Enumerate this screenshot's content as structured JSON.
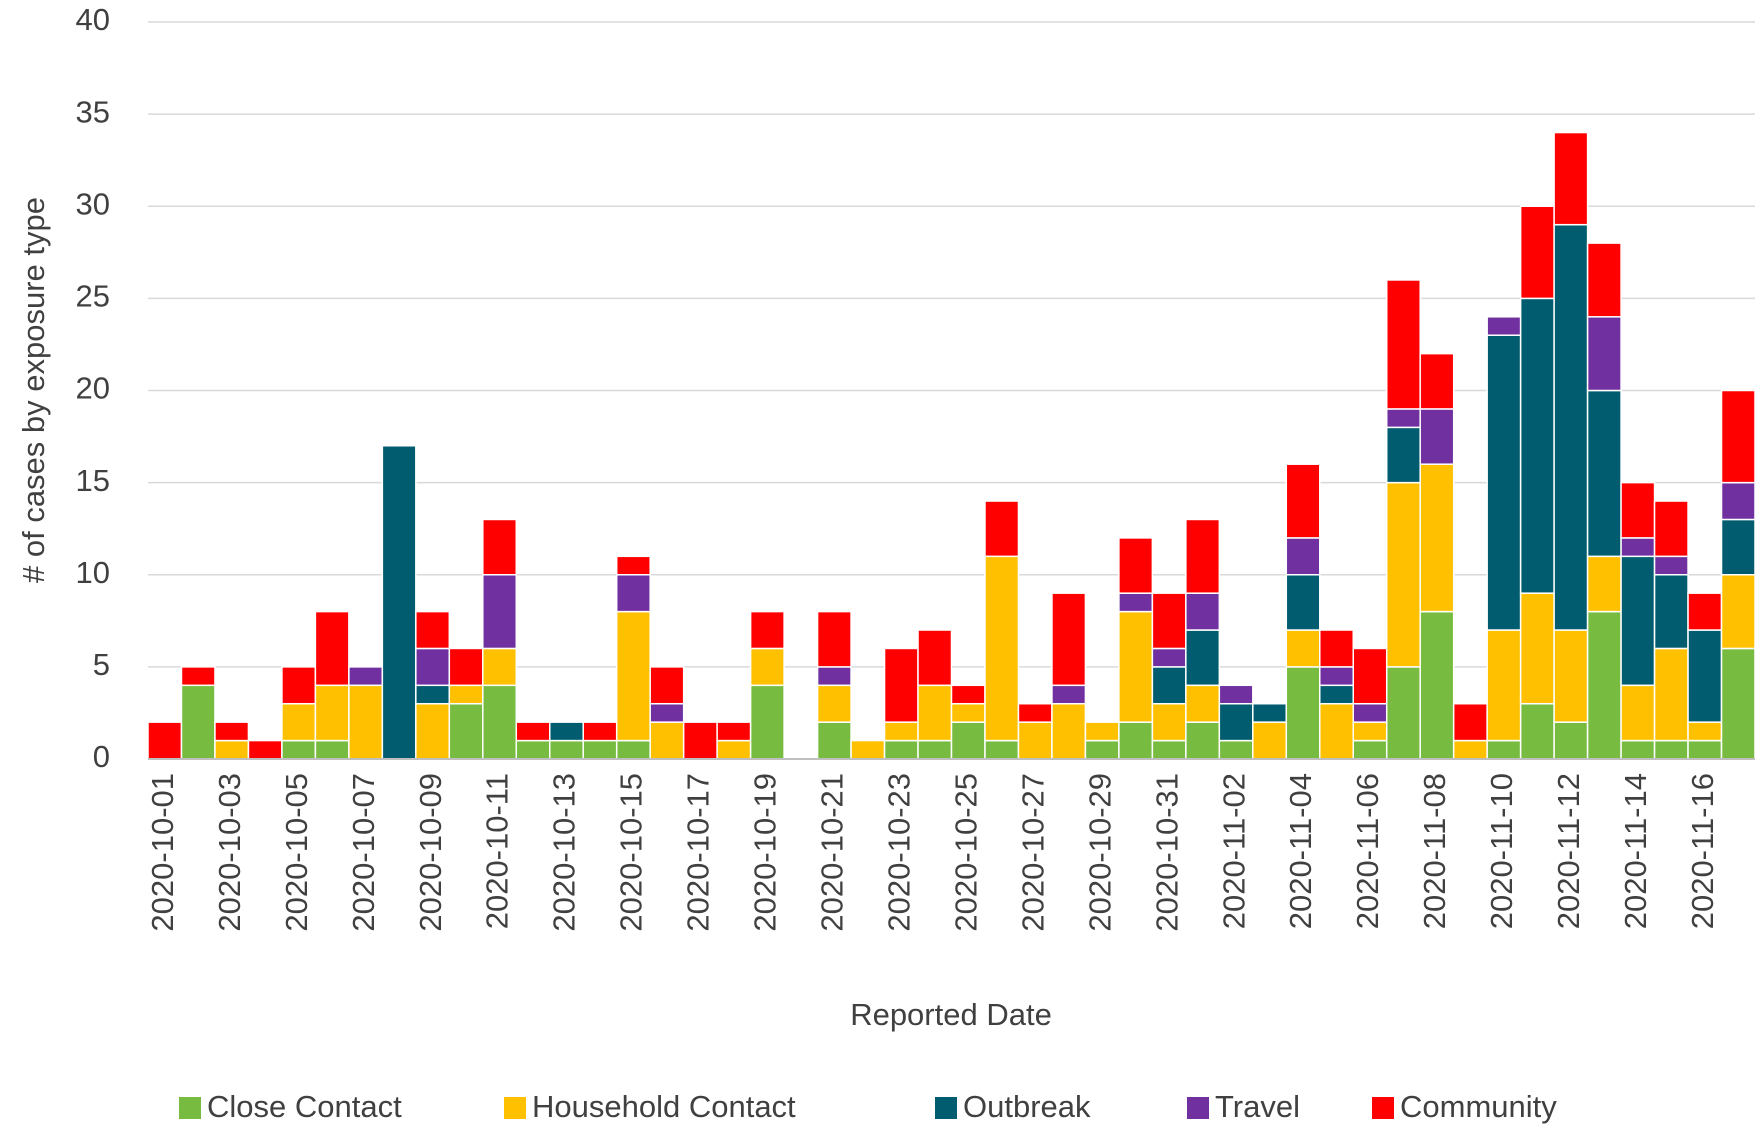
{
  "chart_data": {
    "type": "stacked_bar",
    "x_label": "Reported Date",
    "y_label": "# of cases by exposure type",
    "categories": [
      "2020-10-01",
      null,
      "2020-10-03",
      null,
      "2020-10-05",
      null,
      "2020-10-07",
      null,
      "2020-10-09",
      null,
      "2020-10-11",
      null,
      "2020-10-13",
      null,
      "2020-10-15",
      null,
      "2020-10-17",
      null,
      "2020-10-19",
      null,
      "2020-10-21",
      null,
      "2020-10-23",
      null,
      "2020-10-25",
      null,
      "2020-10-27",
      null,
      "2020-10-29",
      null,
      "2020-10-31",
      null,
      "2020-11-02",
      null,
      "2020-11-04",
      null,
      "2020-11-06",
      null,
      "2020-11-08",
      null,
      "2020-11-10",
      null,
      "2020-11-12",
      null,
      "2020-11-14",
      null,
      "2020-11-16",
      null
    ],
    "series": [
      {
        "name": "Close Contact",
        "color": "#77bc41",
        "values": [
          0,
          4,
          0,
          0,
          1,
          1,
          0,
          0,
          0,
          3,
          4,
          1,
          1,
          1,
          1,
          0,
          0,
          0,
          4,
          0,
          2,
          0,
          1,
          1,
          2,
          1,
          0,
          0,
          1,
          2,
          1,
          2,
          1,
          0,
          5,
          0,
          1,
          5,
          8,
          0,
          1,
          3,
          2,
          8,
          1,
          1,
          1,
          6
        ]
      },
      {
        "name": "Household Contact",
        "color": "#ffc000",
        "values": [
          0,
          0,
          1,
          0,
          2,
          3,
          4,
          0,
          3,
          1,
          2,
          0,
          0,
          0,
          7,
          2,
          0,
          1,
          2,
          0,
          2,
          1,
          1,
          3,
          1,
          10,
          2,
          3,
          1,
          6,
          2,
          2,
          0,
          2,
          2,
          3,
          1,
          10,
          8,
          1,
          6,
          6,
          5,
          3,
          3,
          5,
          1,
          4
        ]
      },
      {
        "name": "Outbreak",
        "color": "#005c6e",
        "values": [
          0,
          0,
          0,
          0,
          0,
          0,
          0,
          17,
          1,
          0,
          0,
          0,
          1,
          0,
          0,
          0,
          0,
          0,
          0,
          0,
          0,
          0,
          0,
          0,
          0,
          0,
          0,
          0,
          0,
          0,
          2,
          3,
          2,
          1,
          3,
          1,
          0,
          3,
          0,
          0,
          16,
          16,
          22,
          9,
          7,
          4,
          5,
          3
        ]
      },
      {
        "name": "Travel",
        "color": "#7030a0",
        "values": [
          0,
          0,
          0,
          0,
          0,
          0,
          1,
          0,
          2,
          0,
          4,
          0,
          0,
          0,
          2,
          1,
          0,
          0,
          0,
          0,
          1,
          0,
          0,
          0,
          0,
          0,
          0,
          1,
          0,
          1,
          1,
          2,
          1,
          0,
          2,
          1,
          1,
          1,
          3,
          0,
          1,
          0,
          0,
          4,
          1,
          1,
          0,
          2
        ]
      },
      {
        "name": "Community",
        "color": "#ff0000",
        "values": [
          2,
          1,
          1,
          1,
          2,
          4,
          0,
          0,
          2,
          2,
          3,
          1,
          0,
          1,
          1,
          2,
          2,
          1,
          2,
          0,
          3,
          0,
          4,
          3,
          1,
          3,
          1,
          5,
          0,
          3,
          3,
          4,
          0,
          0,
          4,
          2,
          3,
          7,
          3,
          2,
          0,
          5,
          5,
          4,
          3,
          3,
          2,
          5
        ]
      }
    ],
    "ylim": [
      0,
      40
    ],
    "yticks": [
      0,
      5,
      10,
      15,
      20,
      25,
      30,
      35,
      40
    ],
    "grid": true,
    "legend": "bottom"
  }
}
